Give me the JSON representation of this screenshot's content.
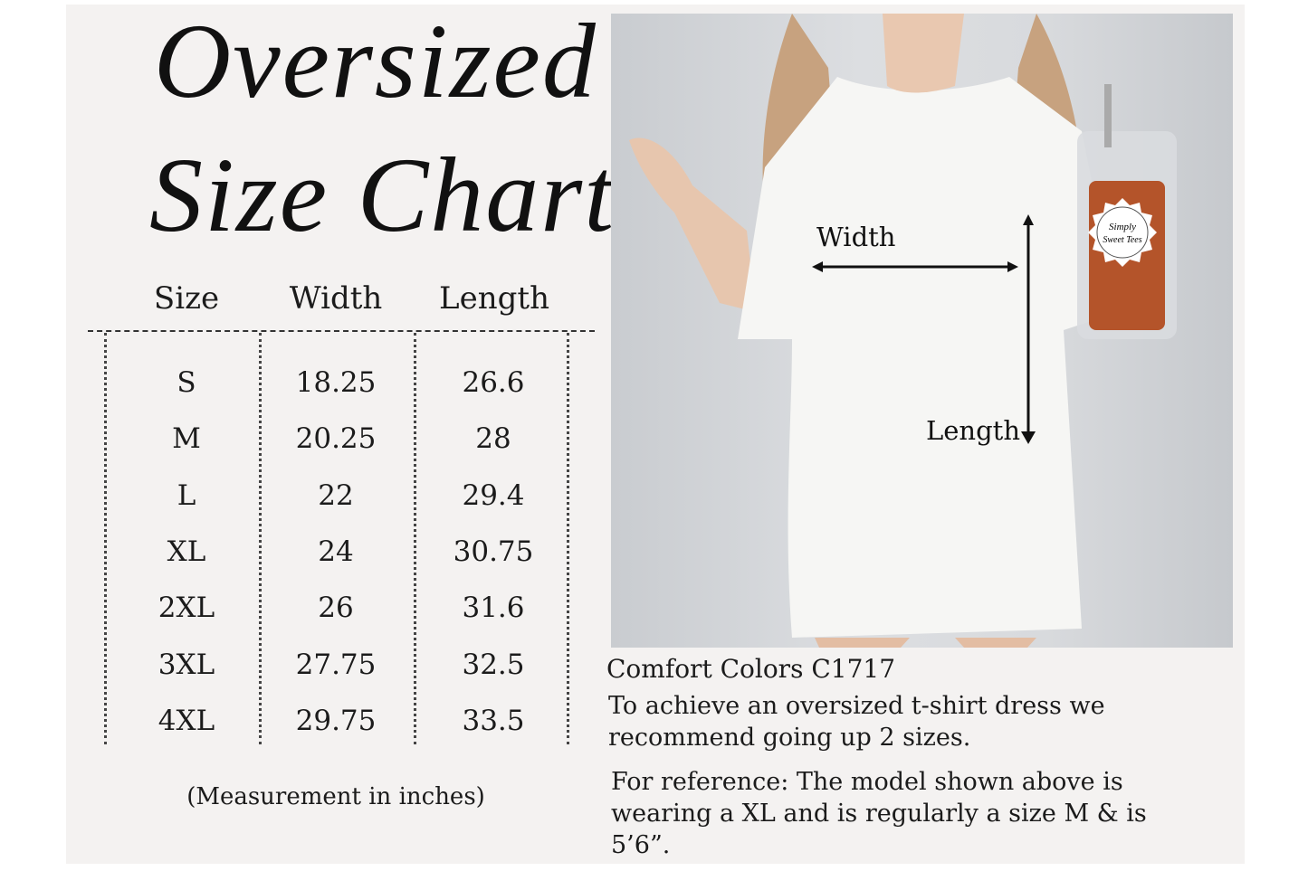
{
  "title": {
    "line1": "Oversized",
    "line2": "Size Chart"
  },
  "table": {
    "headers": [
      "Size",
      "Width",
      "Length"
    ],
    "rows": [
      [
        "S",
        "18.25",
        "26.6"
      ],
      [
        "M",
        "20.25",
        "28"
      ],
      [
        "L",
        "22",
        "29.4"
      ],
      [
        "XL",
        "24",
        "30.75"
      ],
      [
        "2XL",
        "26",
        "31.6"
      ],
      [
        "3XL",
        "27.75",
        "32.5"
      ],
      [
        "4XL",
        "29.75",
        "33.5"
      ]
    ],
    "note": "(Measurement in inches)"
  },
  "photo": {
    "width_label": "Width",
    "length_label": "Length",
    "logo_text": "Simply Sweet Tees"
  },
  "description": {
    "product": "Comfort Colors C1717",
    "recommendation_lines": [
      "To achieve an oversized t-shirt dress we",
      "recommend going up 2 sizes."
    ],
    "reference_lines": [
      "For reference: The model shown above is",
      "wearing a XL and is regularly a size M & is",
      "5’6”."
    ]
  }
}
